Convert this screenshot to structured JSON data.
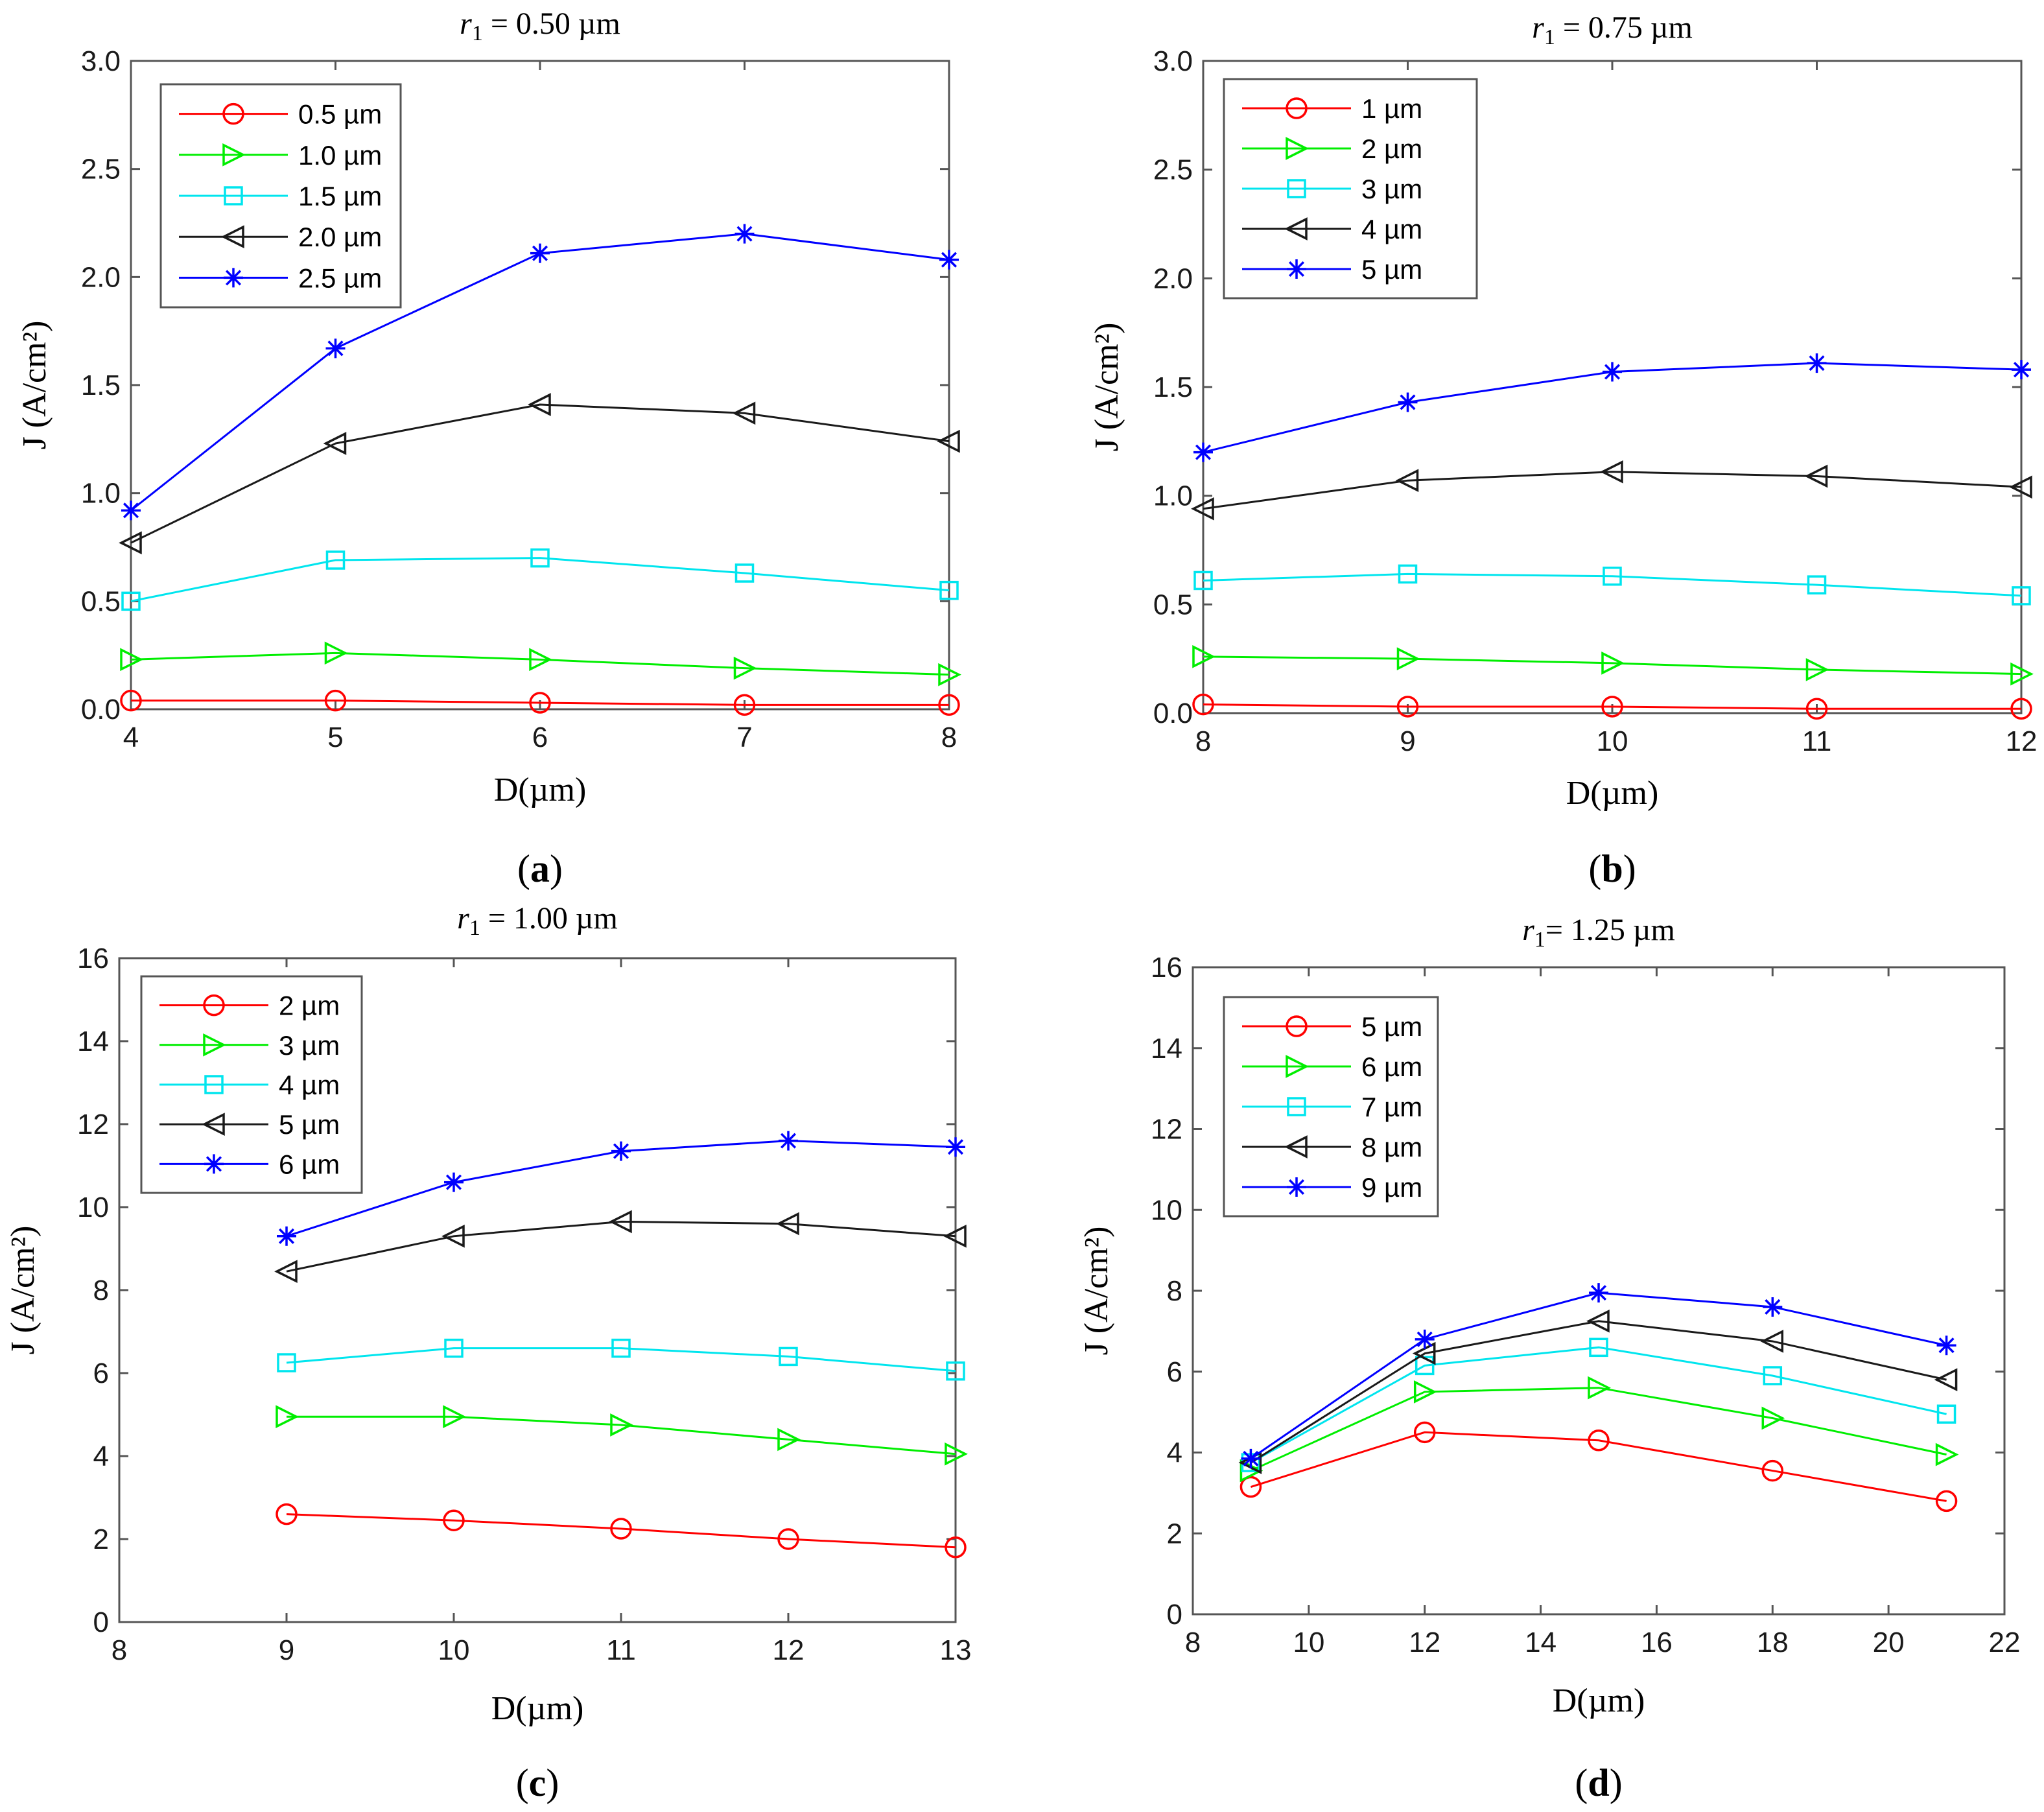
{
  "colors": {
    "red": "#ff0000",
    "green": "#00ee00",
    "cyan": "#00e5ee",
    "black": "#1a1a1a",
    "blue": "#0000ff"
  },
  "chart_data": [
    {
      "id": "a",
      "type": "line",
      "panel_label": "a",
      "title_symbol": "r",
      "title_subscript": "1",
      "title_value": " = 0.50 µm",
      "xlabel": "D(µm)",
      "ylabel": "J (A/cm²)",
      "xlim": [
        4,
        8
      ],
      "ylim": [
        0,
        3.0
      ],
      "xticks": [
        "4",
        "5",
        "6",
        "7",
        "8"
      ],
      "yticks": [
        "0.0",
        "0.5",
        "1.0",
        "1.5",
        "2.0",
        "2.5",
        "3.0"
      ],
      "x": [
        4,
        5,
        6,
        7,
        8
      ],
      "legend_position": "top-left",
      "series": [
        {
          "name": "0.5 µm",
          "color": "red",
          "marker": "circle",
          "values": [
            0.04,
            0.04,
            0.03,
            0.02,
            0.02
          ]
        },
        {
          "name": "1.0 µm",
          "color": "green",
          "marker": "triangle-right",
          "values": [
            0.23,
            0.26,
            0.23,
            0.19,
            0.16
          ]
        },
        {
          "name": "1.5 µm",
          "color": "cyan",
          "marker": "square",
          "values": [
            0.5,
            0.69,
            0.7,
            0.63,
            0.55
          ]
        },
        {
          "name": "2.0 µm",
          "color": "black",
          "marker": "triangle-left",
          "values": [
            0.77,
            1.23,
            1.41,
            1.37,
            1.24
          ]
        },
        {
          "name": "2.5 µm",
          "color": "blue",
          "marker": "asterisk",
          "values": [
            0.92,
            1.67,
            2.11,
            2.2,
            2.08
          ]
        }
      ]
    },
    {
      "id": "b",
      "type": "line",
      "panel_label": "b",
      "title_symbol": "r",
      "title_subscript": "1",
      "title_value": " = 0.75 µm",
      "xlabel": "D(µm)",
      "ylabel": "J (A/cm²)",
      "xlim": [
        8,
        12
      ],
      "ylim": [
        0,
        3.0
      ],
      "xticks": [
        "8",
        "9",
        "10",
        "11",
        "12"
      ],
      "yticks": [
        "0.0",
        "0.5",
        "1.0",
        "1.5",
        "2.0",
        "2.5",
        "3.0"
      ],
      "x": [
        8,
        9,
        10,
        11,
        12
      ],
      "legend_position": "top-left",
      "series": [
        {
          "name": "1 µm",
          "color": "red",
          "marker": "circle",
          "values": [
            0.04,
            0.03,
            0.03,
            0.02,
            0.02
          ]
        },
        {
          "name": "2 µm",
          "color": "green",
          "marker": "triangle-right",
          "values": [
            0.26,
            0.25,
            0.23,
            0.2,
            0.18
          ]
        },
        {
          "name": "3 µm",
          "color": "cyan",
          "marker": "square",
          "values": [
            0.61,
            0.64,
            0.63,
            0.59,
            0.54
          ]
        },
        {
          "name": "4 µm",
          "color": "black",
          "marker": "triangle-left",
          "values": [
            0.94,
            1.07,
            1.11,
            1.09,
            1.04
          ]
        },
        {
          "name": "5 µm",
          "color": "blue",
          "marker": "asterisk",
          "values": [
            1.2,
            1.43,
            1.57,
            1.61,
            1.58
          ]
        }
      ]
    },
    {
      "id": "c",
      "type": "line",
      "panel_label": "c",
      "title_symbol": "r",
      "title_subscript": "1",
      "title_value": " = 1.00 µm",
      "xlabel": "D(µm)",
      "ylabel": "J (A/cm²)",
      "xlim": [
        8,
        13
      ],
      "ylim": [
        0,
        16
      ],
      "xticks": [
        "8",
        "9",
        "10",
        "11",
        "12",
        "13"
      ],
      "yticks": [
        "0",
        "2",
        "4",
        "6",
        "8",
        "10",
        "12",
        "14",
        "16"
      ],
      "x": [
        9,
        10,
        11,
        12,
        13
      ],
      "legend_position": "top-left",
      "series": [
        {
          "name": "2 µm",
          "color": "red",
          "marker": "circle",
          "values": [
            2.6,
            2.45,
            2.25,
            2.0,
            1.8
          ]
        },
        {
          "name": "3 µm",
          "color": "green",
          "marker": "triangle-right",
          "values": [
            4.95,
            4.95,
            4.75,
            4.4,
            4.05
          ]
        },
        {
          "name": "4 µm",
          "color": "cyan",
          "marker": "square",
          "values": [
            6.25,
            6.6,
            6.6,
            6.4,
            6.05
          ]
        },
        {
          "name": "5 µm",
          "color": "black",
          "marker": "triangle-left",
          "values": [
            8.45,
            9.3,
            9.65,
            9.6,
            9.3
          ]
        },
        {
          "name": "6 µm",
          "color": "blue",
          "marker": "asterisk",
          "values": [
            9.3,
            10.6,
            11.35,
            11.6,
            11.45
          ]
        }
      ]
    },
    {
      "id": "d",
      "type": "line",
      "panel_label": "d",
      "title_symbol": "r",
      "title_subscript": "1",
      "title_value": "= 1.25 µm",
      "xlabel": "D(µm)",
      "ylabel": "J (A/cm²)",
      "xlim": [
        8,
        22
      ],
      "ylim": [
        0,
        16
      ],
      "xticks": [
        "8",
        "10",
        "12",
        "14",
        "16",
        "18",
        "20",
        "22"
      ],
      "yticks": [
        "0",
        "2",
        "4",
        "6",
        "8",
        "10",
        "12",
        "14",
        "16"
      ],
      "x": [
        9,
        12,
        15,
        18,
        21
      ],
      "legend_position": "top-left",
      "series": [
        {
          "name": "5 µm",
          "color": "red",
          "marker": "circle",
          "values": [
            3.15,
            4.5,
            4.3,
            3.55,
            2.8
          ]
        },
        {
          "name": "6 µm",
          "color": "green",
          "marker": "triangle-right",
          "values": [
            3.55,
            5.5,
            5.6,
            4.85,
            3.95
          ]
        },
        {
          "name": "7 µm",
          "color": "cyan",
          "marker": "square",
          "values": [
            3.75,
            6.15,
            6.6,
            5.9,
            4.95
          ]
        },
        {
          "name": "8 µm",
          "color": "black",
          "marker": "triangle-left",
          "values": [
            3.75,
            6.45,
            7.25,
            6.75,
            5.8
          ]
        },
        {
          "name": "9 µm",
          "color": "blue",
          "marker": "asterisk",
          "values": [
            3.85,
            6.8,
            7.95,
            7.6,
            6.65
          ]
        }
      ]
    }
  ]
}
